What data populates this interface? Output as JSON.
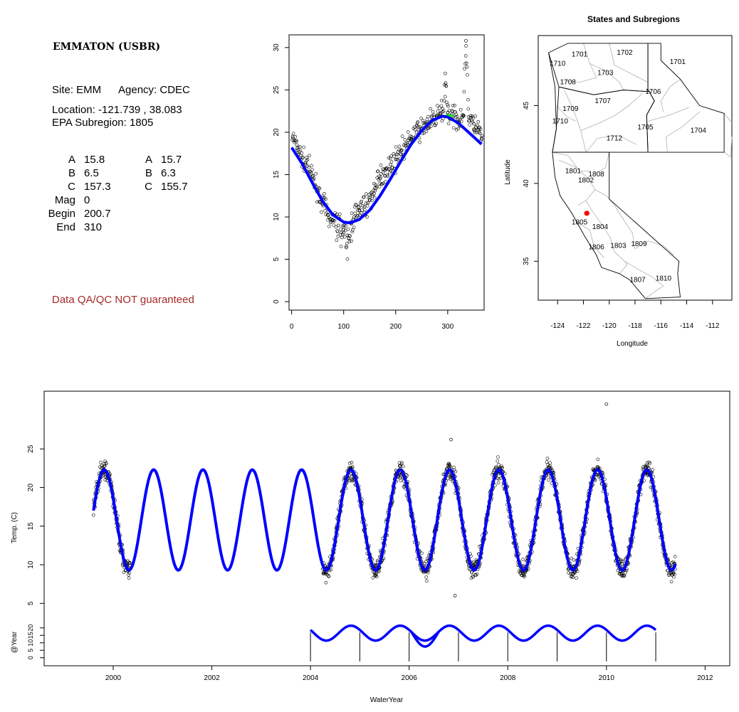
{
  "info": {
    "site_title": "EMMATON (USBR)",
    "site_label": "Site: EMM",
    "agency_label": "Agency: CDEC",
    "location_label": "Location: -121.739 , 38.083",
    "subregion_label": "EPA Subregion: 1805",
    "params_left": [
      {
        "key": "A",
        "value": "15.8"
      },
      {
        "key": "B",
        "value": "6.5"
      },
      {
        "key": "C",
        "value": "157.3"
      },
      {
        "key": "Mag",
        "value": "0"
      },
      {
        "key": "Begin",
        "value": "200.7"
      },
      {
        "key": "End",
        "value": "310"
      }
    ],
    "params_right": [
      {
        "key": "A",
        "value": "15.7"
      },
      {
        "key": "B",
        "value": "6.3"
      },
      {
        "key": "C",
        "value": "155.7"
      }
    ],
    "disclaimer": "Data QA/QC NOT guaranteed"
  },
  "colors": {
    "fit_line": "#0000ff",
    "fit_line_alt": "#00ff00",
    "points": "#000000",
    "site_marker": "#ff0000",
    "disclaimer": "#a52a2a"
  },
  "chart_data": [
    {
      "type": "scatter",
      "title": "",
      "xlabel": "",
      "ylabel": "",
      "xlim": [
        -5,
        370
      ],
      "ylim": [
        -1,
        31.5
      ],
      "xticks": [
        0,
        100,
        200,
        300
      ],
      "yticks": [
        0,
        5,
        10,
        15,
        20,
        25,
        30
      ],
      "series": [
        {
          "type": "scatter",
          "description_points": "daily temperature observations by day of water year",
          "x": [
            2,
            10,
            20,
            30,
            40,
            50,
            60,
            70,
            80,
            90,
            100,
            105,
            110,
            115,
            120,
            130,
            140,
            150,
            160,
            170,
            180,
            190,
            200,
            210,
            220,
            230,
            240,
            250,
            260,
            270,
            280,
            290,
            296,
            300,
            310,
            320,
            330,
            335,
            340,
            350,
            360,
            365
          ],
          "y": [
            19.5,
            18.5,
            17.0,
            16.0,
            14.8,
            13.2,
            11.5,
            10.2,
            9.6,
            9.0,
            8.5,
            6.5,
            7.5,
            9.2,
            10.0,
            10.8,
            11.2,
            12.0,
            13.4,
            14.5,
            15.5,
            16.2,
            16.8,
            17.8,
            18.4,
            19.2,
            20.0,
            20.5,
            21.0,
            21.5,
            22.0,
            22.4,
            25.8,
            22.3,
            21.8,
            21.5,
            22.0,
            30.8,
            21.8,
            21.0,
            20.0,
            19.2
          ]
        },
        {
          "type": "line",
          "color": "#0000ff",
          "x": [
            0,
            20,
            40,
            60,
            80,
            100,
            112,
            130,
            150,
            170,
            190,
            210,
            230,
            250,
            270,
            290,
            300,
            320,
            340,
            365
          ],
          "y": [
            18.2,
            16.3,
            14.0,
            11.8,
            10.2,
            9.4,
            9.3,
            9.7,
            10.8,
            12.5,
            14.5,
            16.6,
            18.6,
            20.2,
            21.4,
            21.9,
            21.8,
            21.1,
            20.0,
            18.6
          ]
        },
        {
          "type": "line",
          "color": "#00ff00",
          "x": [
            200,
            230,
            260,
            280,
            300,
            310
          ],
          "y": [
            15.6,
            18.7,
            20.9,
            21.7,
            22.0,
            21.9
          ]
        }
      ]
    },
    {
      "type": "map",
      "title": "States and Subregions",
      "xlabel": "Longitude",
      "ylabel": "Latitude",
      "xlim": [
        -125.5,
        -110.5
      ],
      "ylim": [
        32.5,
        49.5
      ],
      "xticks": [
        -124,
        -122,
        -120,
        -118,
        -116,
        -114,
        -112
      ],
      "yticks": [
        35,
        40,
        45
      ],
      "region_labels": [
        {
          "label": "1701",
          "lon": -122.3,
          "lat": 48.3
        },
        {
          "label": "1702",
          "lon": -118.8,
          "lat": 48.4
        },
        {
          "label": "1701",
          "lon": -114.7,
          "lat": 47.8
        },
        {
          "label": "1710",
          "lon": -124.0,
          "lat": 47.7
        },
        {
          "label": "1703",
          "lon": -120.3,
          "lat": 47.1
        },
        {
          "label": "1708",
          "lon": -123.2,
          "lat": 46.5
        },
        {
          "label": "1706",
          "lon": -116.6,
          "lat": 45.9
        },
        {
          "label": "1707",
          "lon": -120.5,
          "lat": 45.3
        },
        {
          "label": "1709",
          "lon": -123.0,
          "lat": 44.8
        },
        {
          "label": "1710",
          "lon": -123.8,
          "lat": 44.0
        },
        {
          "label": "1705",
          "lon": -117.2,
          "lat": 43.6
        },
        {
          "label": "1704",
          "lon": -113.1,
          "lat": 43.4
        },
        {
          "label": "1712",
          "lon": -119.6,
          "lat": 42.9
        },
        {
          "label": "1801",
          "lon": -122.8,
          "lat": 40.8
        },
        {
          "label": "1808",
          "lon": -121.0,
          "lat": 40.6
        },
        {
          "label": "1802",
          "lon": -121.8,
          "lat": 40.2
        },
        {
          "label": "1805",
          "lon": -122.3,
          "lat": 37.5
        },
        {
          "label": "1804",
          "lon": -120.7,
          "lat": 37.2
        },
        {
          "label": "1809",
          "lon": -117.7,
          "lat": 36.1
        },
        {
          "label": "1803",
          "lon": -119.3,
          "lat": 36.0
        },
        {
          "label": "1806",
          "lon": -121.0,
          "lat": 35.9
        },
        {
          "label": "1810",
          "lon": -115.8,
          "lat": 33.9
        },
        {
          "label": "1807",
          "lon": -117.8,
          "lat": 33.8
        }
      ],
      "site_marker": {
        "lon": -121.739,
        "lat": 38.083
      }
    },
    {
      "type": "scatter",
      "title": "",
      "xlabel": "WaterYear",
      "ylabel": "Temp. (C)",
      "ylabel_lower": "@Year",
      "xlim": [
        1998.6,
        2012.5
      ],
      "ylim_upper": [
        3,
        31
      ],
      "ylim_lower": [
        -3,
        28
      ],
      "xticks": [
        2000,
        2002,
        2004,
        2006,
        2008,
        2010,
        2012
      ],
      "yticks_upper": [
        5,
        10,
        15,
        20,
        25
      ],
      "yticks_lower": [
        0,
        5,
        10,
        15,
        20
      ],
      "fit_sine": {
        "mean": 15.8,
        "amplitude": 6.5,
        "period_years": 1.0,
        "phase_peak_year_fraction": 0.82
      },
      "fit_range": [
        1999.6,
        2011.4
      ],
      "observation_ranges": [
        [
          1999.6,
          2000.35
        ],
        [
          2004.25,
          2011.4
        ]
      ],
      "outliers": [
        {
          "x": 2010.0,
          "y": 30.8
        },
        {
          "x": 2006.93,
          "y": 6.0
        },
        {
          "x": 2006.85,
          "y": 26.2
        }
      ],
      "lower_series": {
        "x_start": 2004.0,
        "x_end": 2011.0,
        "year_markers": [
          2004,
          2005,
          2006,
          2007,
          2008,
          2009,
          2010,
          2011
        ]
      }
    }
  ]
}
